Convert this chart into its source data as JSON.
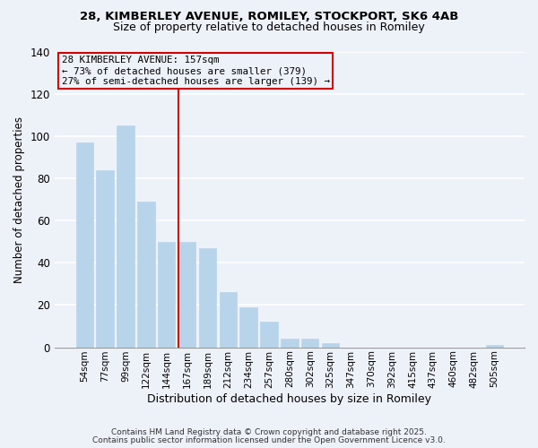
{
  "title_line1": "28, KIMBERLEY AVENUE, ROMILEY, STOCKPORT, SK6 4AB",
  "title_line2": "Size of property relative to detached houses in Romiley",
  "xlabel": "Distribution of detached houses by size in Romiley",
  "ylabel": "Number of detached properties",
  "bar_labels": [
    "54sqm",
    "77sqm",
    "99sqm",
    "122sqm",
    "144sqm",
    "167sqm",
    "189sqm",
    "212sqm",
    "234sqm",
    "257sqm",
    "280sqm",
    "302sqm",
    "325sqm",
    "347sqm",
    "370sqm",
    "392sqm",
    "415sqm",
    "437sqm",
    "460sqm",
    "482sqm",
    "505sqm"
  ],
  "bar_values": [
    97,
    84,
    105,
    69,
    50,
    50,
    47,
    26,
    19,
    12,
    4,
    4,
    2,
    0,
    0,
    0,
    0,
    0,
    0,
    0,
    1
  ],
  "bar_color": "#b8d4ea",
  "bar_edge_color": "#b8d4ea",
  "vline_color": "#cc0000",
  "vline_index": 5,
  "annotation_title": "28 KIMBERLEY AVENUE: 157sqm",
  "annotation_line2": "← 73% of detached houses are smaller (379)",
  "annotation_line3": "27% of semi-detached houses are larger (139) →",
  "annotation_box_edge": "#cc0000",
  "ylim": [
    0,
    140
  ],
  "yticks": [
    0,
    20,
    40,
    60,
    80,
    100,
    120,
    140
  ],
  "footer_line1": "Contains HM Land Registry data © Crown copyright and database right 2025.",
  "footer_line2": "Contains public sector information licensed under the Open Government Licence v3.0.",
  "background_color": "#edf2f9",
  "grid_color": "#ffffff"
}
